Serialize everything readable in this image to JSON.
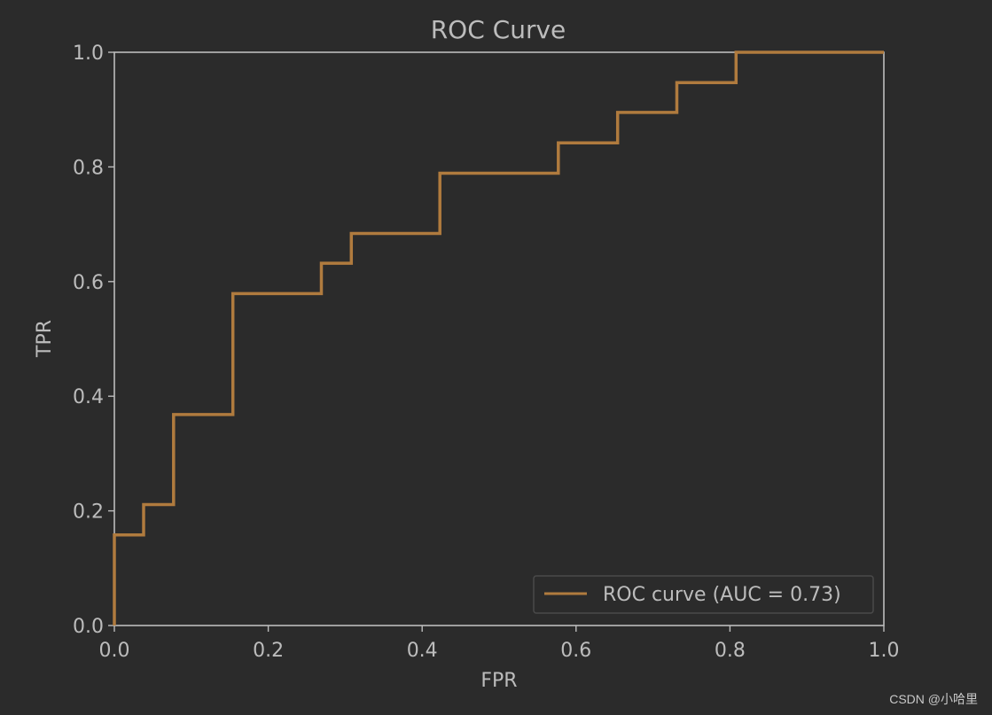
{
  "chart_data": {
    "type": "line",
    "title": "ROC Curve",
    "xlabel": "FPR",
    "ylabel": "TPR",
    "xlim": [
      0.0,
      1.0
    ],
    "ylim": [
      0.0,
      1.0
    ],
    "x_ticks": [
      "0.0",
      "0.2",
      "0.4",
      "0.6",
      "0.8",
      "1.0"
    ],
    "y_ticks": [
      "0.0",
      "0.2",
      "0.4",
      "0.6",
      "0.8",
      "1.0"
    ],
    "grid": false,
    "legend_position": "lower-right",
    "series": [
      {
        "name": "ROC curve (AUC = 0.73)",
        "color": "#b07b3e",
        "step": true,
        "x": [
          0.0,
          0.0,
          0.038,
          0.038,
          0.077,
          0.077,
          0.154,
          0.154,
          0.269,
          0.269,
          0.308,
          0.308,
          0.423,
          0.423,
          0.577,
          0.577,
          0.654,
          0.654,
          0.731,
          0.731,
          0.808,
          0.808,
          1.0
        ],
        "y": [
          0.0,
          0.158,
          0.158,
          0.211,
          0.211,
          0.368,
          0.368,
          0.579,
          0.579,
          0.632,
          0.632,
          0.684,
          0.684,
          0.789,
          0.789,
          0.842,
          0.842,
          0.895,
          0.895,
          0.947,
          0.947,
          1.0,
          1.0
        ]
      }
    ]
  },
  "colors": {
    "background": "#2b2b2b",
    "axes": "#bcbcbc",
    "text": "#bcbcbc"
  },
  "watermark": "CSDN @小哈里"
}
